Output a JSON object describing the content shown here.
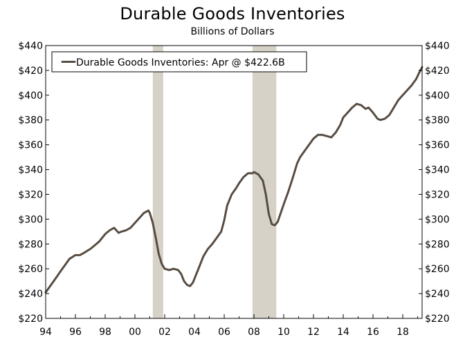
{
  "colors": {
    "line": "#574c42",
    "recession": "#d7d2c7",
    "axis": "#000000",
    "legend_border": "#000000"
  },
  "chart_data": {
    "type": "line",
    "title": "Durable Goods Inventories",
    "subtitle": "Billions of Dollars",
    "xlabel": "",
    "ylabel": "",
    "legend": {
      "placement": "top-left",
      "entries": [
        "Durable Goods Inventories: Apr @ $422.6B"
      ]
    },
    "xlim": [
      1994,
      2019.3
    ],
    "ylim": [
      220,
      440
    ],
    "x_ticks": [
      1994,
      1996,
      1998,
      2000,
      2002,
      2004,
      2006,
      2008,
      2010,
      2012,
      2014,
      2016,
      2018
    ],
    "x_tick_labels": [
      "94",
      "96",
      "98",
      "00",
      "02",
      "04",
      "06",
      "08",
      "10",
      "12",
      "14",
      "16",
      "18"
    ],
    "y_ticks": [
      220,
      240,
      260,
      280,
      300,
      320,
      340,
      360,
      380,
      400,
      420,
      440
    ],
    "y_tick_labels_left": [
      "$220",
      "$240",
      "$260",
      "$280",
      "$300",
      "$320",
      "$340",
      "$360",
      "$380",
      "$400",
      "$420",
      "$440"
    ],
    "y_tick_labels_right": [
      "$220",
      "$240",
      "$260",
      "$280",
      "$300",
      "$320",
      "$340",
      "$360",
      "$380",
      "$400",
      "$420",
      "$440"
    ],
    "recessions": [
      {
        "start": 2001.2,
        "end": 2001.9
      },
      {
        "start": 2007.9,
        "end": 2009.5
      }
    ],
    "series": [
      {
        "name": "Durable Goods Inventories",
        "x": [
          1994.0,
          1994.3,
          1994.6,
          1995.0,
          1995.3,
          1995.6,
          1996.0,
          1996.3,
          1996.6,
          1997.0,
          1997.3,
          1997.6,
          1998.0,
          1998.3,
          1998.6,
          1998.9,
          1999.1,
          1999.4,
          1999.7,
          2000.0,
          2000.3,
          2000.6,
          2000.9,
          2001.0,
          2001.2,
          2001.4,
          2001.6,
          2001.8,
          2002.0,
          2002.3,
          2002.6,
          2002.9,
          2003.1,
          2003.3,
          2003.5,
          2003.7,
          2003.9,
          2004.1,
          2004.3,
          2004.6,
          2004.9,
          2005.2,
          2005.5,
          2005.8,
          2006.0,
          2006.2,
          2006.5,
          2006.8,
          2007.0,
          2007.3,
          2007.6,
          2007.9,
          2008.0,
          2008.3,
          2008.6,
          2008.8,
          2009.0,
          2009.2,
          2009.4,
          2009.6,
          2009.8,
          2010.0,
          2010.3,
          2010.6,
          2010.9,
          2011.1,
          2011.4,
          2011.7,
          2012.0,
          2012.3,
          2012.6,
          2012.9,
          2013.2,
          2013.5,
          2013.8,
          2014.0,
          2014.3,
          2014.6,
          2014.9,
          2015.2,
          2015.5,
          2015.7,
          2016.0,
          2016.3,
          2016.5,
          2016.8,
          2017.1,
          2017.4,
          2017.7,
          2018.0,
          2018.3,
          2018.6,
          2018.9,
          2019.1,
          2019.3
        ],
        "y": [
          241,
          246,
          251,
          258,
          263,
          268,
          271,
          271,
          273,
          276,
          279,
          282,
          288,
          291,
          293,
          289,
          290,
          291,
          293,
          297,
          301,
          305,
          307,
          305,
          297,
          285,
          272,
          264,
          260,
          259,
          260,
          259,
          256,
          250,
          247,
          246,
          249,
          255,
          261,
          270,
          276,
          280,
          285,
          290,
          299,
          311,
          320,
          325,
          329,
          334,
          337,
          337,
          338,
          336,
          331,
          320,
          304,
          296,
          295,
          298,
          305,
          312,
          322,
          333,
          345,
          350,
          355,
          360,
          365,
          368,
          368,
          367,
          366,
          370,
          376,
          382,
          386,
          390,
          393,
          392,
          389,
          390,
          386,
          381,
          380,
          381,
          384,
          390,
          396,
          400,
          404,
          408,
          413,
          418,
          422.6
        ]
      }
    ]
  }
}
